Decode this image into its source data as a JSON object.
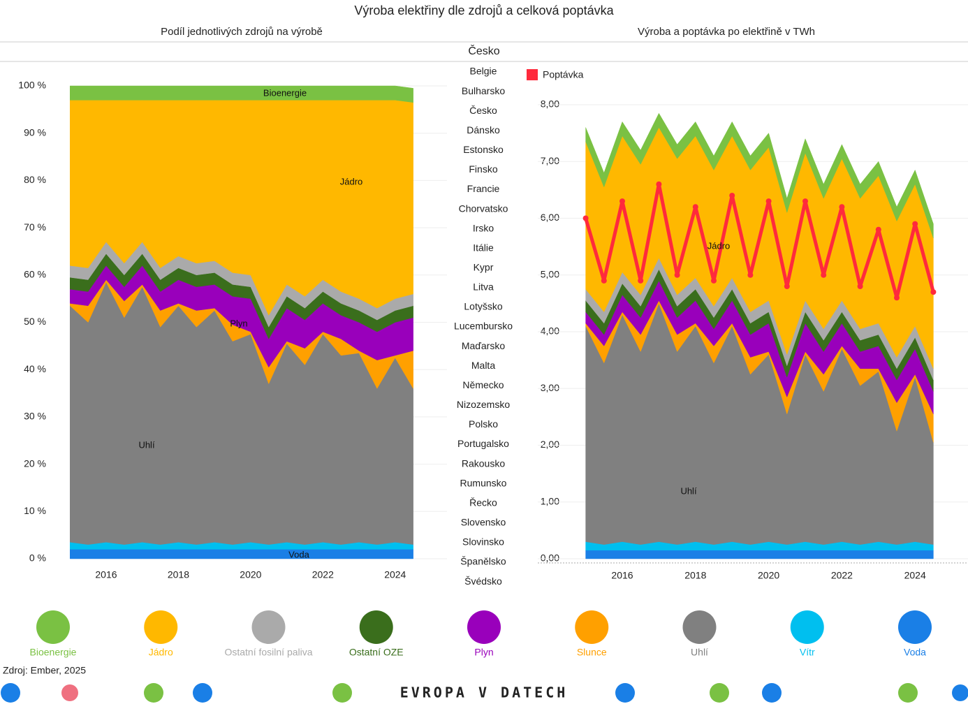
{
  "title": "Výroba elektřiny dle zdrojů a celková poptávka",
  "selected": "Česko",
  "countries": [
    "Belgie",
    "Bulharsko",
    "Česko",
    "Dánsko",
    "Estonsko",
    "Finsko",
    "Francie",
    "Chorvatsko",
    "Irsko",
    "Itálie",
    "Kypr",
    "Litva",
    "Lotyšsko",
    "Lucembursko",
    "Maďarsko",
    "Malta",
    "Německo",
    "Nizozemsko",
    "Polsko",
    "Portugalsko",
    "Rakousko",
    "Rumunsko",
    "Řecko",
    "Slovensko",
    "Slovinsko",
    "Španělsko",
    "Švédsko"
  ],
  "source": "Zdroj: Ember, 2025",
  "brand": "EVROPA V DATECH",
  "chart_data": [
    {
      "type": "area",
      "subtitle": "Podíl jednotlivých zdrojů na výrobě",
      "x": [
        2015,
        2015.5,
        2016,
        2016.5,
        2017,
        2017.5,
        2018,
        2018.5,
        2019,
        2019.5,
        2020,
        2020.5,
        2021,
        2021.5,
        2022,
        2022.5,
        2023,
        2023.5,
        2024,
        2024.5
      ],
      "xlim": [
        2015,
        2025
      ],
      "xticks": [
        2016,
        2018,
        2020,
        2022,
        2024
      ],
      "ylim": [
        0,
        100
      ],
      "yticks": [
        {
          "value": 0,
          "label": "0 %"
        },
        {
          "value": 10,
          "label": "10 %"
        },
        {
          "value": 20,
          "label": "20 %"
        },
        {
          "value": 30,
          "label": "30 %"
        },
        {
          "value": 40,
          "label": "40 %"
        },
        {
          "value": 50,
          "label": "50 %"
        },
        {
          "value": 60,
          "label": "60 %"
        },
        {
          "value": 70,
          "label": "70 %"
        },
        {
          "value": 80,
          "label": "80 %"
        },
        {
          "value": 90,
          "label": "90 %"
        },
        {
          "value": 100,
          "label": "100 %"
        }
      ],
      "grid": true,
      "annotations": [
        "Bioenergie",
        "Jádro",
        "Plyn",
        "Uhlí",
        "Voda"
      ],
      "series": [
        {
          "name": "Voda",
          "color": "#1a7fe6",
          "values": [
            2,
            2,
            2,
            2,
            2,
            2,
            2,
            2,
            2,
            2,
            2,
            2,
            2,
            2,
            2,
            2,
            2,
            2,
            2,
            2
          ]
        },
        {
          "name": "Vítr",
          "color": "#00bfef",
          "values": [
            1.5,
            1,
            1.5,
            1,
            1.5,
            1,
            1.5,
            1,
            1.5,
            1,
            1.5,
            1,
            1.5,
            1,
            1.5,
            1,
            1.5,
            1,
            1.5,
            1
          ]
        },
        {
          "name": "Uhlí",
          "color": "#808080",
          "values": [
            50,
            47,
            55,
            48,
            54,
            46,
            50,
            46,
            49,
            43,
            44,
            34,
            42,
            38,
            44,
            40,
            40,
            33,
            39,
            33
          ]
        },
        {
          "name": "Slunce",
          "color": "#ffa000",
          "values": [
            0.5,
            3.5,
            0.5,
            3.5,
            0.5,
            3.5,
            0.5,
            3.5,
            0.5,
            3.5,
            0.5,
            3.5,
            0.5,
            3.5,
            0.5,
            3.5,
            0.5,
            6,
            0.5,
            8
          ]
        },
        {
          "name": "Plyn",
          "color": "#9900bb",
          "values": [
            3,
            3,
            3,
            3,
            4,
            4,
            5,
            5,
            5,
            6,
            7,
            6,
            7,
            6,
            6,
            5,
            6,
            6,
            7,
            7
          ]
        },
        {
          "name": "Ostatní OZE",
          "color": "#3a6e1c",
          "values": [
            2.5,
            2.5,
            2.5,
            2.5,
            2.5,
            2.5,
            2.5,
            2.5,
            2.5,
            2.5,
            2.5,
            2.5,
            2.5,
            2.5,
            2.5,
            2.5,
            2.5,
            2.5,
            2.5,
            2.5
          ]
        },
        {
          "name": "Ostatní fosilní paliva",
          "color": "#aaaaaa",
          "values": [
            2.5,
            2.5,
            2.5,
            2.5,
            2.5,
            2.5,
            2.5,
            2.5,
            2.5,
            2.5,
            2.5,
            2.5,
            2.5,
            2.5,
            2.5,
            2.5,
            2.5,
            2.5,
            2.5,
            2.5
          ]
        },
        {
          "name": "Jádro",
          "color": "#ffb800",
          "values": [
            35,
            35.5,
            30,
            34.5,
            30,
            35.5,
            33,
            34.5,
            34,
            36.5,
            37,
            45.5,
            39,
            41.5,
            38,
            40.5,
            42,
            44,
            42,
            40.5
          ]
        },
        {
          "name": "Bioenergie",
          "color": "#7ac143",
          "values": [
            3,
            3,
            3,
            3,
            3,
            3,
            3,
            3,
            3,
            3,
            3,
            3,
            3,
            3,
            3,
            3,
            3,
            3,
            3,
            3
          ]
        }
      ]
    },
    {
      "type": "area",
      "subtitle": "Výroba a poptávka po elektřině v TWh",
      "x": [
        2015,
        2015.5,
        2016,
        2016.5,
        2017,
        2017.5,
        2018,
        2018.5,
        2019,
        2019.5,
        2020,
        2020.5,
        2021,
        2021.5,
        2022,
        2022.5,
        2023,
        2023.5,
        2024,
        2024.5
      ],
      "xlim": [
        2015,
        2025
      ],
      "xticks": [
        2016,
        2018,
        2020,
        2022,
        2024
      ],
      "ylim": [
        0,
        8
      ],
      "yticks": [
        {
          "value": 0,
          "label": "0,00"
        },
        {
          "value": 1,
          "label": "1,00"
        },
        {
          "value": 2,
          "label": "2,00"
        },
        {
          "value": 3,
          "label": "3,00"
        },
        {
          "value": 4,
          "label": "4,00"
        },
        {
          "value": 5,
          "label": "5,00"
        },
        {
          "value": 6,
          "label": "6,00"
        },
        {
          "value": 7,
          "label": "7,00"
        },
        {
          "value": 8,
          "label": "8,00"
        }
      ],
      "grid": true,
      "annotations": [
        "Jádro",
        "Uhlí"
      ],
      "series": [
        {
          "name": "Voda",
          "color": "#1a7fe6",
          "values": [
            0.15,
            0.15,
            0.15,
            0.15,
            0.15,
            0.15,
            0.15,
            0.15,
            0.15,
            0.15,
            0.15,
            0.15,
            0.15,
            0.15,
            0.15,
            0.15,
            0.15,
            0.15,
            0.15,
            0.15
          ]
        },
        {
          "name": "Vítr",
          "color": "#00bfef",
          "values": [
            0.15,
            0.1,
            0.15,
            0.1,
            0.15,
            0.1,
            0.15,
            0.1,
            0.15,
            0.1,
            0.15,
            0.1,
            0.15,
            0.1,
            0.15,
            0.1,
            0.15,
            0.1,
            0.15,
            0.1
          ]
        },
        {
          "name": "Uhlí",
          "color": "#808080",
          "values": [
            3.8,
            3.2,
            4.0,
            3.4,
            4.2,
            3.4,
            3.8,
            3.2,
            3.8,
            3.0,
            3.3,
            2.3,
            3.3,
            2.7,
            3.4,
            2.8,
            3.0,
            2.0,
            2.9,
            1.8
          ]
        },
        {
          "name": "Slunce",
          "color": "#ffa000",
          "values": [
            0.05,
            0.3,
            0.05,
            0.3,
            0.05,
            0.3,
            0.05,
            0.3,
            0.05,
            0.3,
            0.05,
            0.3,
            0.05,
            0.3,
            0.05,
            0.3,
            0.05,
            0.5,
            0.05,
            0.5
          ]
        },
        {
          "name": "Plyn",
          "color": "#9900bb",
          "values": [
            0.2,
            0.2,
            0.3,
            0.3,
            0.35,
            0.3,
            0.4,
            0.3,
            0.4,
            0.4,
            0.5,
            0.35,
            0.5,
            0.4,
            0.4,
            0.3,
            0.4,
            0.4,
            0.45,
            0.4
          ]
        },
        {
          "name": "Ostatní OZE",
          "color": "#3a6e1c",
          "values": [
            0.2,
            0.2,
            0.2,
            0.2,
            0.2,
            0.2,
            0.2,
            0.2,
            0.2,
            0.2,
            0.2,
            0.2,
            0.2,
            0.2,
            0.2,
            0.2,
            0.2,
            0.2,
            0.2,
            0.2
          ]
        },
        {
          "name": "Ostatní fosilní paliva",
          "color": "#aaaaaa",
          "values": [
            0.2,
            0.2,
            0.2,
            0.2,
            0.2,
            0.2,
            0.2,
            0.2,
            0.2,
            0.2,
            0.2,
            0.2,
            0.2,
            0.2,
            0.2,
            0.2,
            0.2,
            0.2,
            0.2,
            0.2
          ]
        },
        {
          "name": "Jádro",
          "color": "#ffb800",
          "values": [
            2.6,
            2.2,
            2.4,
            2.3,
            2.3,
            2.4,
            2.5,
            2.4,
            2.5,
            2.5,
            2.7,
            2.5,
            2.6,
            2.3,
            2.5,
            2.3,
            2.6,
            2.4,
            2.5,
            2.3
          ]
        },
        {
          "name": "Bioenergie",
          "color": "#7ac143",
          "values": [
            0.25,
            0.25,
            0.25,
            0.25,
            0.25,
            0.25,
            0.25,
            0.25,
            0.25,
            0.25,
            0.25,
            0.25,
            0.25,
            0.25,
            0.25,
            0.25,
            0.25,
            0.25,
            0.25,
            0.25
          ]
        }
      ],
      "line": {
        "name": "Poptávka",
        "color": "#ff2a3c",
        "values": [
          6.0,
          4.9,
          6.3,
          4.9,
          6.6,
          5.0,
          6.2,
          4.9,
          6.4,
          5.0,
          6.3,
          4.8,
          6.3,
          5.0,
          6.2,
          4.8,
          5.8,
          4.6,
          5.9,
          4.7
        ]
      }
    }
  ]
}
